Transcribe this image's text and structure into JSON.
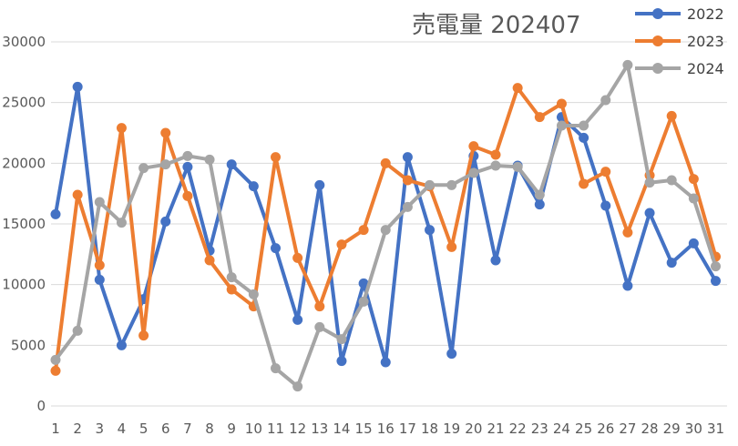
{
  "chart_data": {
    "type": "line",
    "title": "売電量 202407",
    "x": [
      1,
      2,
      3,
      4,
      5,
      6,
      7,
      8,
      9,
      10,
      11,
      12,
      13,
      14,
      15,
      16,
      17,
      18,
      19,
      20,
      21,
      22,
      23,
      24,
      25,
      26,
      27,
      28,
      29,
      30,
      31
    ],
    "ylim": [
      0,
      30000
    ],
    "yticks": [
      0,
      5000,
      10000,
      15000,
      20000,
      25000,
      30000
    ],
    "grid": "horizontal",
    "legend": "top-right",
    "series": [
      {
        "name": "2022",
        "color": "#4472c4",
        "values": [
          15800,
          26300,
          10400,
          5000,
          8800,
          15200,
          19700,
          12800,
          19900,
          18100,
          13000,
          7100,
          18200,
          3700,
          10100,
          3600,
          20500,
          14500,
          4300,
          20600,
          12000,
          19800,
          16600,
          23800,
          22100,
          16500,
          9900,
          15900,
          11800,
          13400,
          10300
        ]
      },
      {
        "name": "2023",
        "color": "#ed7d31",
        "values": [
          2900,
          17400,
          11600,
          22900,
          5800,
          22500,
          17300,
          12000,
          9600,
          8200,
          20500,
          12200,
          8200,
          13300,
          14500,
          20000,
          18600,
          18100,
          13100,
          21400,
          20700,
          26200,
          23800,
          24900,
          18300,
          19300,
          14300,
          19000,
          23900,
          18700,
          12300
        ]
      },
      {
        "name": "2024",
        "color": "#a5a5a5",
        "values": [
          3800,
          6200,
          16800,
          15100,
          19600,
          19900,
          20600,
          20300,
          10600,
          9200,
          3100,
          1600,
          6500,
          5500,
          8600,
          14500,
          16400,
          18200,
          18200,
          19200,
          19800,
          19700,
          17400,
          23100,
          23100,
          25200,
          28100,
          18400,
          18600,
          17100,
          11500
        ]
      }
    ]
  }
}
